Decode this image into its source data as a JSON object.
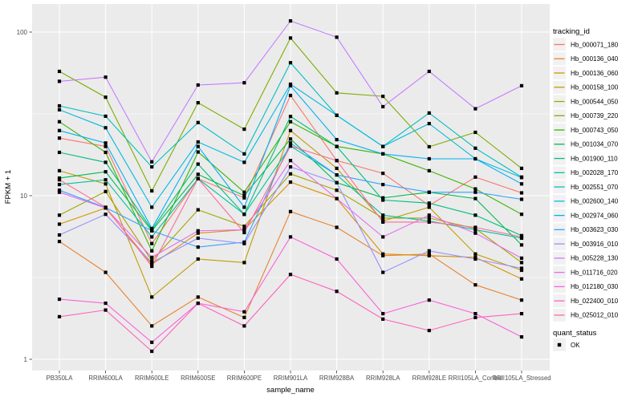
{
  "figure": {
    "panel_background": "#EBEBEB",
    "gridline_color": "#FFFFFF",
    "tick_color": "#333333",
    "tick_label_color": "#4D4D4D",
    "title_color": "#000000",
    "point_color": "#000000",
    "legend_key_fill": "#F1F1F1"
  },
  "chart_data": {
    "type": "line",
    "title": "",
    "xlabel": "sample_name",
    "ylabel": "FPKM + 1",
    "y_scale": "log10",
    "ylim": [
      0.85,
      150
    ],
    "y_tick_values": [
      1,
      10,
      100
    ],
    "y_tick_labels": [
      "1",
      "10",
      "100"
    ],
    "y_minor_tick_values": [
      3.1623,
      31.623
    ],
    "grid": true,
    "legend_position": "right",
    "legend_title": "tracking_id",
    "point_legend_title": "quant_status",
    "point_legend_entries": [
      "OK"
    ],
    "point_shape": "filled-square",
    "categories": [
      "PB350LA",
      "RRIM600LA",
      "RRIM600LE",
      "RRIM600SE",
      "RRIM600PE",
      "RRIM901LA",
      "RRIM928BA",
      "RRIM928LA",
      "RRIM928LE",
      "RRII105LA_Control",
      "RRII105LA_Stressed"
    ],
    "series": [
      {
        "name": "Hb_000071_180",
        "color": "#F8766D",
        "values": [
          22.5,
          20,
          5.1,
          12.7,
          9.7,
          41,
          16.4,
          13.7,
          8.7,
          13,
          10.4
        ]
      },
      {
        "name": "Hb_000136_040",
        "color": "#EA8331",
        "values": [
          5.25,
          3.4,
          1.6,
          2.4,
          1.8,
          8.0,
          6.4,
          4.3,
          4.4,
          2.85,
          2.3
        ]
      },
      {
        "name": "Hb_000136_060",
        "color": "#D89000",
        "values": [
          6.7,
          8.4,
          3.8,
          5.9,
          6.2,
          12.1,
          9.6,
          4.4,
          4.3,
          4.2,
          3.1
        ]
      },
      {
        "name": "Hb_000158_100",
        "color": "#C09B00",
        "values": [
          14.2,
          11.8,
          2.4,
          4.1,
          3.9,
          25,
          14.7,
          7.0,
          8.5,
          4.4,
          3.5
        ]
      },
      {
        "name": "Hb_000544_050",
        "color": "#A3A500",
        "values": [
          7.6,
          10.6,
          4.0,
          8.2,
          6.5,
          13.6,
          10.8,
          7.3,
          7.3,
          6.3,
          3.9
        ]
      },
      {
        "name": "Hb_000739_220",
        "color": "#7CAE00",
        "values": [
          57.5,
          40,
          10.7,
          37,
          25.5,
          92,
          42.5,
          40.5,
          19.9,
          24.4,
          14.7
        ]
      },
      {
        "name": "Hb_000743_050",
        "color": "#39B600",
        "values": [
          28.3,
          18.4,
          4.6,
          18.5,
          10.5,
          28.3,
          20,
          18,
          14.2,
          11,
          7.7
        ]
      },
      {
        "name": "Hb_001034_070",
        "color": "#00BB4E",
        "values": [
          12.8,
          14,
          6.1,
          13.5,
          10,
          22.2,
          12,
          9.7,
          10.5,
          9.6,
          5.0
        ]
      },
      {
        "name": "Hb_001900_110",
        "color": "#00BF7D",
        "values": [
          18.4,
          16,
          6.2,
          15.6,
          7.7,
          30.5,
          20,
          9.4,
          9.0,
          7.6,
          5.7
        ]
      },
      {
        "name": "Hb_002028_170",
        "color": "#00C1A3",
        "values": [
          11.7,
          12.5,
          5.6,
          12.7,
          7.7,
          20.1,
          13.4,
          7.6,
          7.0,
          6.2,
          5.5
        ]
      },
      {
        "name": "Hb_002551_070",
        "color": "#00BFC4",
        "values": [
          35.4,
          30.6,
          15,
          28,
          18,
          65,
          31,
          20,
          32,
          19.5,
          13
        ]
      },
      {
        "name": "Hb_002600_140",
        "color": "#00BAE0",
        "values": [
          33.5,
          26,
          8.5,
          21.3,
          16,
          48,
          31,
          20,
          27.6,
          16.8,
          12.9
        ]
      },
      {
        "name": "Hb_002974_060",
        "color": "#00B0F6",
        "values": [
          25,
          21,
          6.3,
          20,
          8.5,
          47,
          22,
          18,
          16.8,
          16.8,
          11.8
        ]
      },
      {
        "name": "Hb_003623_030",
        "color": "#35A2FF",
        "values": [
          10.8,
          8.45,
          6.1,
          4.85,
          5.2,
          21,
          13.4,
          11.7,
          10.5,
          10.5,
          9.5
        ]
      },
      {
        "name": "Hb_003916_010",
        "color": "#9590FF",
        "values": [
          5.75,
          7.7,
          3.9,
          5.5,
          5.1,
          15,
          12,
          3.4,
          4.6,
          4.1,
          3.6
        ]
      },
      {
        "name": "Hb_005228_130",
        "color": "#C77CFF",
        "values": [
          50,
          53,
          16.1,
          47.5,
          49,
          117,
          93,
          35,
          57.5,
          34,
          47
        ]
      },
      {
        "name": "Hb_011716_020",
        "color": "#E76BF3",
        "values": [
          10.5,
          8.4,
          4.2,
          6.1,
          6.2,
          16.4,
          9.6,
          5.6,
          7.6,
          5.9,
          4.15
        ]
      },
      {
        "name": "Hb_012180_030",
        "color": "#FA62DB",
        "values": [
          2.33,
          2.2,
          1.27,
          2.2,
          1.95,
          5.6,
          4.1,
          1.9,
          2.3,
          1.9,
          1.37
        ]
      },
      {
        "name": "Hb_022400_010",
        "color": "#FF62BC",
        "values": [
          1.82,
          2.0,
          1.12,
          2.2,
          1.6,
          3.3,
          2.6,
          1.76,
          1.5,
          1.8,
          1.9
        ]
      },
      {
        "name": "Hb_025012_010",
        "color": "#FF6A98",
        "values": [
          12.5,
          8.5,
          3.7,
          12.7,
          5.95,
          20.1,
          16.4,
          6.9,
          6.9,
          6.4,
          5.6
        ]
      }
    ]
  }
}
